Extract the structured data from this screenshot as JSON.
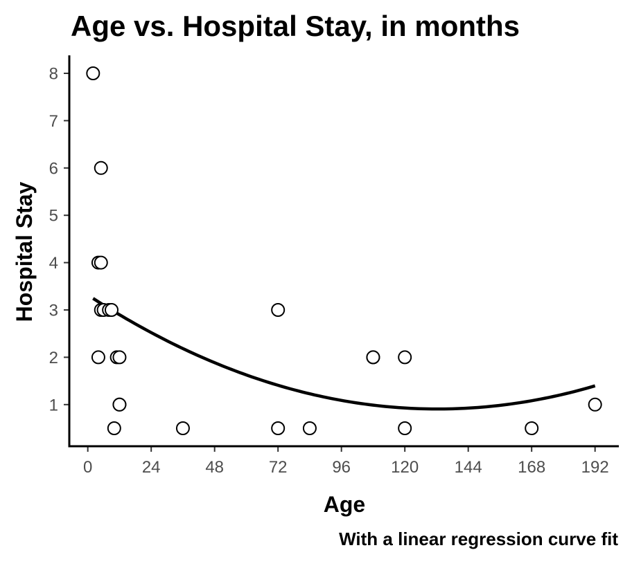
{
  "chart_data": {
    "type": "scatter",
    "title": "Age vs. Hospital Stay, in months",
    "xlabel": "Age",
    "ylabel": "Hospital Stay",
    "caption": "With a linear regression curve fit",
    "xlim": [
      -7,
      201
    ],
    "ylim": [
      0.12,
      8.38
    ],
    "x_ticks": [
      0,
      24,
      48,
      72,
      96,
      120,
      144,
      168,
      192
    ],
    "y_ticks": [
      1,
      2,
      3,
      4,
      5,
      6,
      7,
      8
    ],
    "grid": false,
    "legend": "none",
    "points": [
      {
        "x": 2,
        "y": 8
      },
      {
        "x": 5,
        "y": 6
      },
      {
        "x": 4,
        "y": 4
      },
      {
        "x": 5,
        "y": 4
      },
      {
        "x": 5,
        "y": 3
      },
      {
        "x": 6,
        "y": 3
      },
      {
        "x": 8,
        "y": 3
      },
      {
        "x": 9,
        "y": 3
      },
      {
        "x": 4,
        "y": 2
      },
      {
        "x": 11,
        "y": 2
      },
      {
        "x": 12,
        "y": 2
      },
      {
        "x": 12,
        "y": 1
      },
      {
        "x": 12,
        "y": 1
      },
      {
        "x": 10,
        "y": 0.5
      },
      {
        "x": 36,
        "y": 0.5
      },
      {
        "x": 72,
        "y": 3
      },
      {
        "x": 72,
        "y": 0.5
      },
      {
        "x": 84,
        "y": 0.5
      },
      {
        "x": 108,
        "y": 2
      },
      {
        "x": 108,
        "y": 2
      },
      {
        "x": 120,
        "y": 2
      },
      {
        "x": 120,
        "y": 0.5
      },
      {
        "x": 168,
        "y": 0.5
      },
      {
        "x": 192,
        "y": 1
      }
    ],
    "fit_curve": {
      "type": "quadratic",
      "coefficients": [
        3.316,
        -0.0364,
        0.0001375
      ],
      "x_range": [
        2,
        192
      ]
    }
  }
}
